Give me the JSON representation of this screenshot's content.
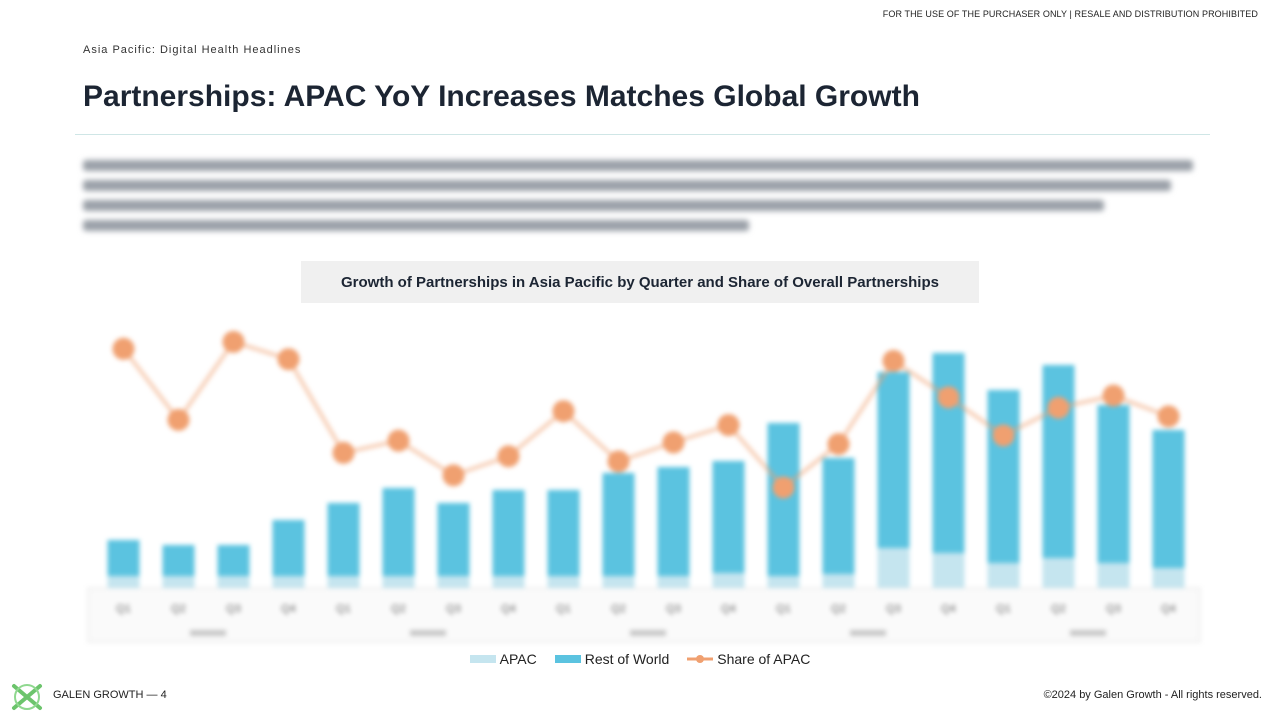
{
  "header": {
    "notice": "FOR THE USE OF THE PURCHASER ONLY | RESALE AND DISTRIBUTION PROHIBITED",
    "kicker": "Asia Pacific: Digital Health Headlines",
    "title": "Partnerships: APAC YoY Increases Matches Global Growth"
  },
  "chart_data": {
    "type": "combo",
    "title": "Growth of Partnerships in Asia Pacific by Quarter and Share of Overall Partnerships",
    "categories": [
      "Q1",
      "Q2",
      "Q3",
      "Q4",
      "Q1",
      "Q2",
      "Q3",
      "Q4",
      "Q1",
      "Q2",
      "Q3",
      "Q4",
      "Q1",
      "Q2",
      "Q3",
      "Q4",
      "Q1",
      "Q2",
      "Q3",
      "Q4"
    ],
    "series": [
      {
        "name": "APAC",
        "color": "#c5e5ef",
        "type": "bar",
        "values": [
          12,
          12,
          12,
          12,
          12,
          12,
          12,
          12,
          12,
          12,
          12,
          15,
          12,
          14,
          40,
          35,
          25,
          30,
          25,
          20
        ]
      },
      {
        "name": "Rest of World",
        "color": "#5bc3e0",
        "type": "bar",
        "values": [
          36,
          31,
          31,
          56,
          73,
          88,
          73,
          86,
          86,
          103,
          109,
          112,
          153,
          116,
          176,
          200,
          173,
          193,
          158,
          138
        ]
      },
      {
        "name": "Share of APAC",
        "color": "#f0a070",
        "type": "line",
        "axis": "y2",
        "values": [
          13.8,
          9.7,
          14.2,
          13.2,
          7.8,
          8.5,
          6.5,
          7.6,
          10.2,
          7.3,
          8.4,
          9.4,
          5.8,
          8.3,
          13.1,
          11.0,
          8.8,
          10.4,
          11.1,
          9.9
        ]
      }
    ],
    "ylim": [
      0,
      260
    ],
    "y2lim": [
      0,
      15
    ]
  },
  "footer": {
    "brand": "GALEN GROWTH",
    "page": "4",
    "copyright": "©2024 by Galen Growth  - All rights reserved."
  }
}
